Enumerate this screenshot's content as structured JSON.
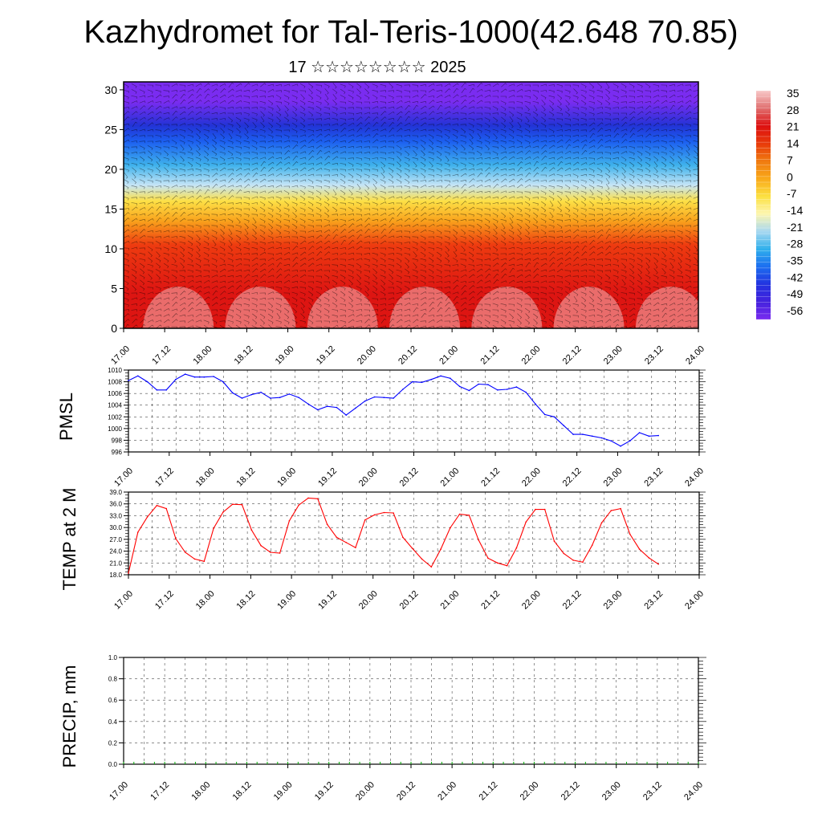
{
  "title": "Kazhydromet for Tal-Teris-1000(42.648 70.85)",
  "subtitle": "17 ☆☆☆☆☆☆☆☆ 2025",
  "chart_data": [
    {
      "type": "heatmap",
      "title": "",
      "x_tick_labels": [
        "17.00",
        "17.12",
        "18.00",
        "18.12",
        "19.00",
        "19.12",
        "20.00",
        "20.12",
        "21.00",
        "21.12",
        "22.00",
        "22.12",
        "23.00",
        "23.12",
        "24.00"
      ],
      "y_ticks": [
        0,
        5,
        10,
        15,
        20,
        25,
        30
      ],
      "ylim": [
        0,
        31
      ],
      "colorbar_labels": [
        "35",
        "28",
        "21",
        "14",
        "7",
        "0",
        "-7",
        "-14",
        "-21",
        "-28",
        "-35",
        "-42",
        "-49",
        "-56"
      ],
      "colorbar_colors": [
        "#f8c8c8",
        "#e07070",
        "#dd1010",
        "#e83a0a",
        "#f07a10",
        "#f9a91a",
        "#fce040",
        "#fdf6b0",
        "#a8d8f0",
        "#30b0ec",
        "#1c6ef0",
        "#2233e0",
        "#4422dd",
        "#7a2cf0"
      ],
      "bands": [
        {
          "from": 0,
          "to": 9,
          "color": "#dd1512"
        },
        {
          "from": 9,
          "to": 12,
          "color": "#ee3b10"
        },
        {
          "from": 12,
          "to": 15,
          "color": "#f9a21c"
        },
        {
          "from": 15,
          "to": 17,
          "color": "#fde046"
        },
        {
          "from": 17,
          "to": 19,
          "color": "#c6e5f6"
        },
        {
          "from": 19,
          "to": 22,
          "color": "#3fb2ec"
        },
        {
          "from": 22,
          "to": 25,
          "color": "#1c5ff0"
        },
        {
          "from": 25,
          "to": 26,
          "color": "#2233d6"
        },
        {
          "from": 26,
          "to": 31,
          "color": "#7a2cf0"
        }
      ]
    },
    {
      "type": "line",
      "ylabel": "PMSL",
      "ylim": [
        996,
        1010
      ],
      "y_ticks": [
        996,
        998,
        1000,
        1002,
        1004,
        1006,
        1008,
        1010
      ],
      "x_tick_labels": [
        "17.00",
        "17.12",
        "18.00",
        "18.12",
        "19.00",
        "19.12",
        "20.00",
        "20.12",
        "21.00",
        "21.12",
        "22.00",
        "22.12",
        "23.00",
        "23.12",
        "24.00"
      ],
      "color": "#0000ff",
      "x": [
        0,
        3,
        6,
        9,
        12,
        15,
        18,
        21,
        24,
        27,
        30,
        33,
        36,
        39,
        42,
        45,
        48,
        51,
        54,
        57,
        60,
        63,
        66,
        69,
        72,
        75,
        78,
        81,
        84,
        87,
        90,
        93,
        96,
        99,
        102,
        105,
        108,
        111,
        114,
        117,
        120,
        123,
        126,
        129,
        132,
        135,
        138,
        141,
        144,
        147,
        150,
        153,
        156,
        159,
        162,
        165,
        168
      ],
      "values": [
        1008.2,
        1009.0,
        1008.0,
        1006.6,
        1006.6,
        1008.4,
        1009.3,
        1008.8,
        1008.8,
        1008.9,
        1008.0,
        1006.1,
        1005.2,
        1005.8,
        1006.2,
        1005.2,
        1005.3,
        1005.9,
        1005.3,
        1004.2,
        1003.2,
        1003.8,
        1003.6,
        1002.3,
        1003.5,
        1004.7,
        1005.4,
        1005.3,
        1005.2,
        1006.7,
        1008.0,
        1007.9,
        1008.4,
        1009.0,
        1008.6,
        1007.2,
        1006.5,
        1007.6,
        1007.5,
        1006.6,
        1006.7,
        1007.1,
        1006.2,
        1004.2,
        1002.4,
        1002.0,
        1000.5,
        999.0,
        999.0,
        998.7,
        998.4,
        997.9,
        997.0,
        997.9,
        999.3,
        998.7,
        998.8
      ]
    },
    {
      "type": "line",
      "ylabel": "TEMP at 2 M",
      "ylim": [
        18,
        39
      ],
      "y_ticks": [
        "18.0",
        "21.0",
        "24.0",
        "27.0",
        "30.0",
        "33.0",
        "36.0",
        "39.0"
      ],
      "x_tick_labels": [
        "17.00",
        "17.12",
        "18.00",
        "18.12",
        "19.00",
        "19.12",
        "20.00",
        "20.12",
        "21.00",
        "21.12",
        "22.00",
        "22.12",
        "23.00",
        "23.12",
        "24.00"
      ],
      "color": "#ff0000",
      "x": [
        0,
        3,
        6,
        9,
        12,
        15,
        18,
        21,
        24,
        27,
        30,
        33,
        36,
        39,
        42,
        45,
        48,
        51,
        54,
        57,
        60,
        63,
        66,
        69,
        72,
        75,
        78,
        81,
        84,
        87,
        90,
        93,
        96,
        99,
        102,
        105,
        108,
        111,
        114,
        117,
        120,
        123,
        126,
        129,
        132,
        135,
        138,
        141,
        144,
        147,
        150,
        153,
        156,
        159,
        162,
        165,
        168
      ],
      "values": [
        18.4,
        28.8,
        32.7,
        35.6,
        34.8,
        27.2,
        23.7,
        22.0,
        21.4,
        29.8,
        33.9,
        35.9,
        35.8,
        29.4,
        25.4,
        23.7,
        23.5,
        31.7,
        35.7,
        37.5,
        37.3,
        30.8,
        27.5,
        26.2,
        24.9,
        31.9,
        33.2,
        33.8,
        33.7,
        27.5,
        24.7,
        22.0,
        20.0,
        24.5,
        29.9,
        33.4,
        33.1,
        26.8,
        22.2,
        21.0,
        20.3,
        24.8,
        31.4,
        34.6,
        34.6,
        26.5,
        23.4,
        21.7,
        21.2,
        25.5,
        31.2,
        34.3,
        34.8,
        28.3,
        24.5,
        22.3,
        20.7
      ]
    },
    {
      "type": "line",
      "ylabel": "PRECIP, mm",
      "ylim": [
        0,
        1
      ],
      "y_ticks": [
        "0.0",
        "0.2",
        "0.4",
        "0.6",
        "0.8",
        "1.0"
      ],
      "x_tick_labels": [
        "17.00",
        "17.12",
        "18.00",
        "18.12",
        "19.00",
        "19.12",
        "20.00",
        "20.12",
        "21.00",
        "21.12",
        "22.00",
        "22.12",
        "23.00",
        "23.12",
        "24.00"
      ],
      "color": "#00aa00",
      "x": [
        0,
        3,
        6,
        9,
        12,
        15,
        18,
        21,
        24,
        27,
        30,
        33,
        36,
        39,
        42,
        45,
        48,
        51,
        54,
        57,
        60,
        63,
        66,
        69,
        72,
        75,
        78,
        81,
        84,
        87,
        90,
        93,
        96,
        99,
        102,
        105,
        108,
        111,
        114,
        117,
        120,
        123,
        126,
        129,
        132,
        135,
        138,
        141,
        144,
        147,
        150,
        153,
        156,
        159,
        162,
        165,
        168
      ],
      "values": [
        0,
        0,
        0,
        0,
        0,
        0,
        0,
        0,
        0,
        0,
        0,
        0,
        0,
        0,
        0,
        0,
        0,
        0,
        0,
        0,
        0,
        0,
        0,
        0,
        0,
        0,
        0,
        0,
        0,
        0,
        0,
        0,
        0,
        0,
        0,
        0,
        0,
        0,
        0,
        0,
        0,
        0,
        0,
        0,
        0,
        0,
        0,
        0,
        0,
        0,
        0,
        0,
        0,
        0,
        0,
        0,
        0
      ]
    }
  ]
}
